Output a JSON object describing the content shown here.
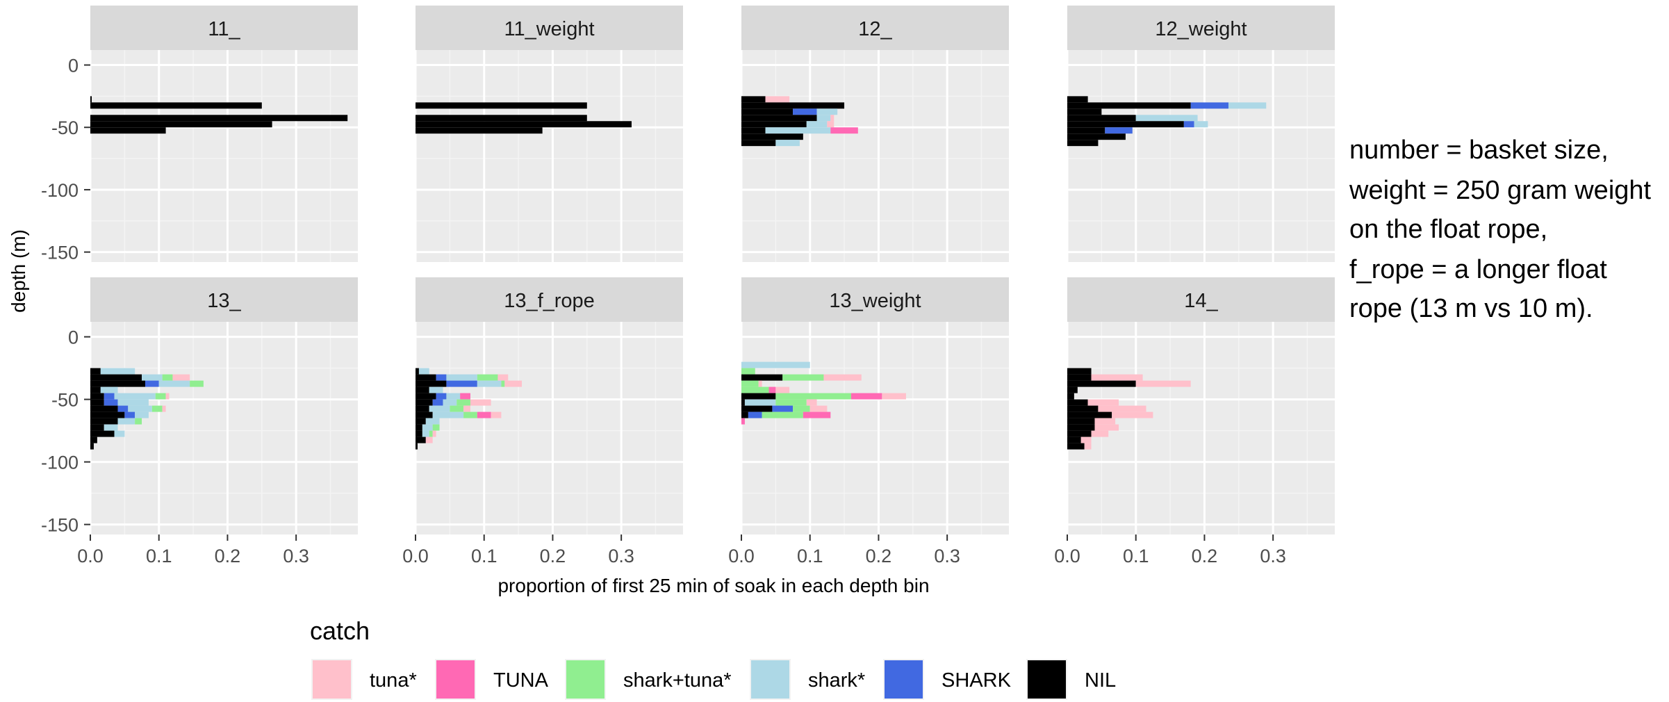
{
  "chart_data": {
    "type": "bar",
    "orientation": "horizontal-stacked",
    "facet_layout": "2 rows x 4 columns",
    "xlabel": "proportion of first 25 min of soak in each depth bin",
    "ylabel": "depth (m)",
    "xlim": [
      0,
      0.39
    ],
    "ylim": [
      -158,
      12
    ],
    "x_ticks": [
      "0.0",
      "0.1",
      "0.2",
      "0.3"
    ],
    "y_ticks": [
      "0",
      "-50",
      "-100",
      "-150"
    ],
    "bin_width_m": 5,
    "grid": true,
    "legend": {
      "title": "catch",
      "position": "bottom",
      "entries": [
        {
          "label": "tuna*",
          "color": "#FFC0CB"
        },
        {
          "label": "TUNA",
          "color": "#FF69B4"
        },
        {
          "label": "shark+tuna*",
          "color": "#90EE90"
        },
        {
          "label": "shark*",
          "color": "#ADD8E6"
        },
        {
          "label": "SHARK",
          "color": "#4169E1"
        },
        {
          "label": "NIL",
          "color": "#000000"
        }
      ]
    },
    "stack_order": [
      "NIL",
      "SHARK",
      "shark*",
      "shark+tuna*",
      "TUNA",
      "tuna*"
    ],
    "facets": [
      {
        "title": "11_",
        "bins": [
          {
            "d": -25,
            "NIL": 0.002
          },
          {
            "d": -30,
            "NIL": 0.25
          },
          {
            "d": -40,
            "NIL": 0.375
          },
          {
            "d": -45,
            "NIL": 0.265
          },
          {
            "d": -50,
            "NIL": 0.11
          }
        ]
      },
      {
        "title": "11_weight",
        "bins": [
          {
            "d": -30,
            "NIL": 0.25
          },
          {
            "d": -40,
            "NIL": 0.25
          },
          {
            "d": -45,
            "NIL": 0.315
          },
          {
            "d": -50,
            "NIL": 0.185
          }
        ]
      },
      {
        "title": "12_",
        "bins": [
          {
            "d": -25,
            "NIL": 0.035,
            "tuna*": 0.035
          },
          {
            "d": -30,
            "NIL": 0.15
          },
          {
            "d": -35,
            "NIL": 0.075,
            "SHARK": 0.035,
            "shark*": 0.03
          },
          {
            "d": -40,
            "NIL": 0.11,
            "shark*": 0.02,
            "tuna*": 0.005
          },
          {
            "d": -45,
            "NIL": 0.095,
            "shark*": 0.03,
            "tuna*": 0.01
          },
          {
            "d": -50,
            "NIL": 0.035,
            "shark*": 0.095,
            "TUNA": 0.04
          },
          {
            "d": -55,
            "NIL": 0.09,
            "shark*": 0.0
          },
          {
            "d": -60,
            "NIL": 0.05,
            "shark*": 0.035
          }
        ]
      },
      {
        "title": "12_weight",
        "bins": [
          {
            "d": -25,
            "NIL": 0.03
          },
          {
            "d": -30,
            "NIL": 0.18,
            "SHARK": 0.055,
            "shark*": 0.055
          },
          {
            "d": -35,
            "NIL": 0.05
          },
          {
            "d": -40,
            "NIL": 0.1,
            "shark*": 0.09
          },
          {
            "d": -45,
            "NIL": 0.17,
            "SHARK": 0.015,
            "shark*": 0.02
          },
          {
            "d": -50,
            "NIL": 0.055,
            "SHARK": 0.04
          },
          {
            "d": -55,
            "NIL": 0.085
          },
          {
            "d": -60,
            "NIL": 0.045
          }
        ]
      },
      {
        "title": "13_",
        "bins": [
          {
            "d": -25,
            "NIL": 0.015,
            "shark*": 0.05
          },
          {
            "d": -30,
            "NIL": 0.075,
            "shark*": 0.03,
            "shark+tuna*": 0.015,
            "tuna*": 0.025
          },
          {
            "d": -35,
            "NIL": 0.08,
            "SHARK": 0.02,
            "shark*": 0.045,
            "shark+tuna*": 0.02
          },
          {
            "d": -40,
            "NIL": 0.015,
            "shark*": 0.025
          },
          {
            "d": -45,
            "NIL": 0.02,
            "SHARK": 0.015,
            "shark*": 0.06,
            "shark+tuna*": 0.015,
            "tuna*": 0.005
          },
          {
            "d": -50,
            "NIL": 0.02,
            "SHARK": 0.02,
            "shark*": 0.045
          },
          {
            "d": -55,
            "NIL": 0.04,
            "SHARK": 0.015,
            "shark*": 0.035,
            "shark+tuna*": 0.015,
            "tuna*": 0.005
          },
          {
            "d": -60,
            "NIL": 0.05,
            "SHARK": 0.015,
            "shark*": 0.02
          },
          {
            "d": -65,
            "NIL": 0.04,
            "shark*": 0.025,
            "shark+tuna*": 0.01
          },
          {
            "d": -70,
            "NIL": 0.02,
            "shark*": 0.02
          },
          {
            "d": -75,
            "NIL": 0.035,
            "shark*": 0.015
          },
          {
            "d": -80,
            "NIL": 0.01
          },
          {
            "d": -85,
            "NIL": 0.005
          }
        ]
      },
      {
        "title": "13_f_rope",
        "bins": [
          {
            "d": -25,
            "NIL": 0.005,
            "shark*": 0.015
          },
          {
            "d": -30,
            "NIL": 0.03,
            "SHARK": 0.015,
            "shark*": 0.045,
            "shark+tuna*": 0.03,
            "tuna*": 0.015
          },
          {
            "d": -35,
            "NIL": 0.045,
            "SHARK": 0.045,
            "shark*": 0.035,
            "shark+tuna*": 0.005,
            "tuna*": 0.025
          },
          {
            "d": -40,
            "NIL": 0.02,
            "shark*": 0.02
          },
          {
            "d": -45,
            "NIL": 0.03,
            "SHARK": 0.015,
            "shark*": 0.02,
            "TUNA": 0.015
          },
          {
            "d": -50,
            "NIL": 0.025,
            "SHARK": 0.015,
            "shark*": 0.02,
            "shark+tuna*": 0.02,
            "tuna*": 0.03
          },
          {
            "d": -55,
            "NIL": 0.02,
            "shark*": 0.03,
            "shark+tuna*": 0.02,
            "tuna*": 0.01
          },
          {
            "d": -60,
            "NIL": 0.025,
            "shark*": 0.045,
            "shark+tuna*": 0.02,
            "TUNA": 0.02,
            "tuna*": 0.015
          },
          {
            "d": -65,
            "NIL": 0.015,
            "shark*": 0.02
          },
          {
            "d": -70,
            "NIL": 0.01,
            "shark*": 0.015,
            "shark+tuna*": 0.01
          },
          {
            "d": -75,
            "NIL": 0.01,
            "shark*": 0.01,
            "shark+tuna*": 0.005,
            "tuna*": 0.005
          },
          {
            "d": -80,
            "NIL": 0.015,
            "tuna*": 0.01
          },
          {
            "d": -85,
            "NIL": 0.003
          }
        ]
      },
      {
        "title": "13_weight",
        "bins": [
          {
            "d": -20,
            "shark*": 0.1
          },
          {
            "d": -25,
            "shark+tuna*": 0.02
          },
          {
            "d": -30,
            "NIL": 0.06,
            "shark+tuna*": 0.06,
            "tuna*": 0.055
          },
          {
            "d": -35,
            "shark+tuna*": 0.025,
            "tuna*": 0.005
          },
          {
            "d": -40,
            "shark+tuna*": 0.04,
            "TUNA": 0.01,
            "tuna*": 0.02
          },
          {
            "d": -45,
            "NIL": 0.05,
            "shark+tuna*": 0.11,
            "TUNA": 0.045,
            "tuna*": 0.035
          },
          {
            "d": -50,
            "NIL": 0.005,
            "shark*": 0.045,
            "shark+tuna*": 0.045,
            "tuna*": 0.015
          },
          {
            "d": -55,
            "NIL": 0.045,
            "SHARK": 0.03,
            "shark+tuna*": 0.025,
            "tuna*": 0.025
          },
          {
            "d": -60,
            "NIL": 0.01,
            "SHARK": 0.02,
            "shark+tuna*": 0.06,
            "TUNA": 0.04
          },
          {
            "d": -65,
            "TUNA": 0.005
          }
        ]
      },
      {
        "title": "14_",
        "bins": [
          {
            "d": -25,
            "NIL": 0.035
          },
          {
            "d": -30,
            "NIL": 0.035,
            "tuna*": 0.075
          },
          {
            "d": -35,
            "NIL": 0.1,
            "tuna*": 0.08
          },
          {
            "d": -40,
            "NIL": 0.015
          },
          {
            "d": -45,
            "NIL": 0.01
          },
          {
            "d": -50,
            "NIL": 0.03,
            "tuna*": 0.045
          },
          {
            "d": -55,
            "NIL": 0.045,
            "tuna*": 0.07
          },
          {
            "d": -60,
            "NIL": 0.065,
            "tuna*": 0.06
          },
          {
            "d": -65,
            "NIL": 0.04,
            "tuna*": 0.03
          },
          {
            "d": -70,
            "NIL": 0.04,
            "tuna*": 0.035
          },
          {
            "d": -75,
            "NIL": 0.035,
            "tuna*": 0.025
          },
          {
            "d": -80,
            "NIL": 0.02,
            "tuna*": 0.015
          },
          {
            "d": -85,
            "NIL": 0.025,
            "tuna*": 0.01
          }
        ]
      }
    ]
  },
  "annotation": {
    "lines": [
      "number = basket size,",
      "weight = 250 gram weight on the float rope,",
      "f_rope = a longer float rope (13 m vs 10 m)."
    ]
  }
}
